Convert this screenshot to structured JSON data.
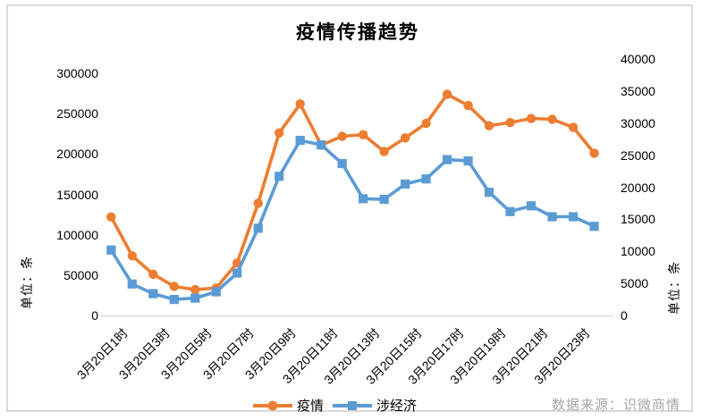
{
  "chart_data": {
    "type": "line",
    "title": "疫情传播趋势",
    "x_tick_labels": [
      "3月20日1时",
      "3月20日3时",
      "3月20日5时",
      "3月20日7时",
      "3月20日9时",
      "3月20日11时",
      "3月20日13时",
      "3月20日15时",
      "3月20日17时",
      "3月20日19时",
      "3月20日21时",
      "3月20日23时"
    ],
    "x_label_interval": 2,
    "n_points": 24,
    "series": [
      {
        "name": "疫情",
        "axis": "left",
        "marker": "circle",
        "color": "#ED7D31",
        "values": [
          122000,
          74000,
          51000,
          36000,
          32000,
          34000,
          65000,
          139000,
          226000,
          262000,
          211000,
          222000,
          224000,
          203000,
          220000,
          238000,
          274000,
          260000,
          235000,
          239000,
          244000,
          243000,
          233000,
          201000
        ]
      },
      {
        "name": "涉经济",
        "axis": "right",
        "marker": "square",
        "color": "#5B9BD5",
        "values": [
          10200,
          4900,
          3400,
          2500,
          2700,
          3700,
          6600,
          13600,
          21700,
          27300,
          26600,
          23700,
          18200,
          18100,
          20500,
          21300,
          24300,
          24100,
          19200,
          16200,
          17100,
          15400,
          15400,
          13900
        ]
      }
    ],
    "left_axis": {
      "title": "单位：条",
      "ticks": [
        0,
        50000,
        100000,
        150000,
        200000,
        250000,
        300000
      ],
      "range_labeled": [
        0,
        300000
      ]
    },
    "right_axis": {
      "title": "单位：条",
      "ticks": [
        0,
        5000,
        10000,
        15000,
        20000,
        25000,
        30000,
        35000,
        40000
      ],
      "range": [
        0,
        40000
      ]
    },
    "legend": {
      "position": "bottom",
      "entries": [
        "疫情",
        "涉经济"
      ]
    },
    "grid": false
  },
  "footer": {
    "source": "数据来源：识微商情"
  },
  "colors": {
    "epidemic_series": "#ED7D31",
    "economy_series": "#5B9BD5",
    "frame_border": "#D9D9D9",
    "axis_line": "#D9D9D9",
    "source_text": "#A6A6A6",
    "text": "#000000"
  }
}
